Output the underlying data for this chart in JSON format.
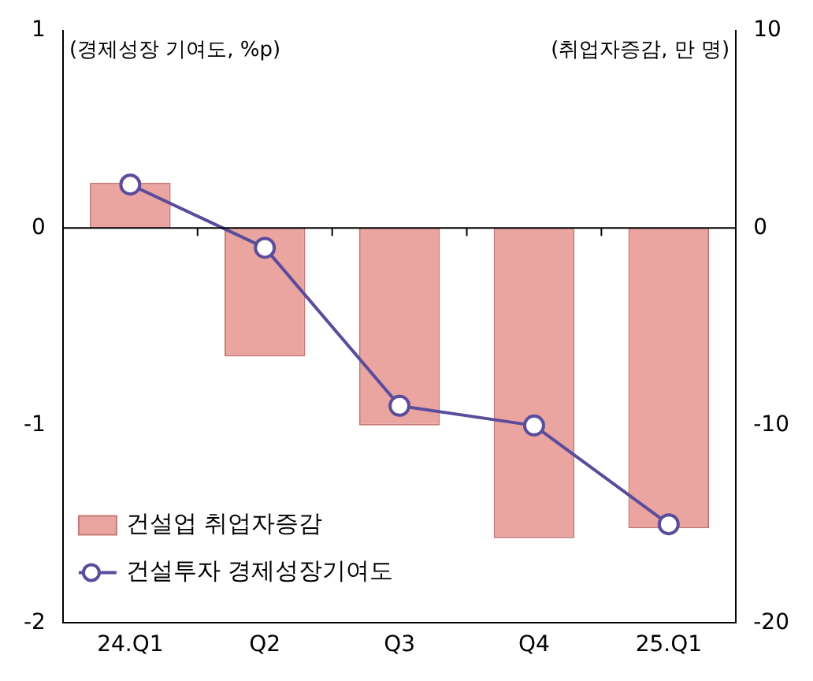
{
  "chart_data": {
    "type": "bar",
    "ylabel": "(경제성장 기여도, %p)",
    "y2label": "(취업자증감, 만 명)",
    "categories": [
      "24.Q1",
      "Q2",
      "Q3",
      "Q4",
      "25.Q1"
    ],
    "series": [
      {
        "name": "건설업 취업자증감",
        "axis": "y2",
        "color": "#eba5a0",
        "values": [
          2.3,
          -6.5,
          -10,
          -15.7,
          -15.2
        ]
      },
      {
        "name": "건설투자 경제성장기여도",
        "type": "line",
        "color": "#5b4c9c",
        "marker": "circle",
        "values": [
          0.22,
          -0.1,
          -0.9,
          -1.0,
          -1.5
        ]
      }
    ],
    "ylim": [
      -2,
      1
    ],
    "yticks": [
      -2,
      -1,
      0,
      1
    ],
    "y2lim": [
      -20,
      10
    ],
    "y2ticks": [
      -20,
      -10,
      0,
      10
    ],
    "legend": "bottom left"
  }
}
